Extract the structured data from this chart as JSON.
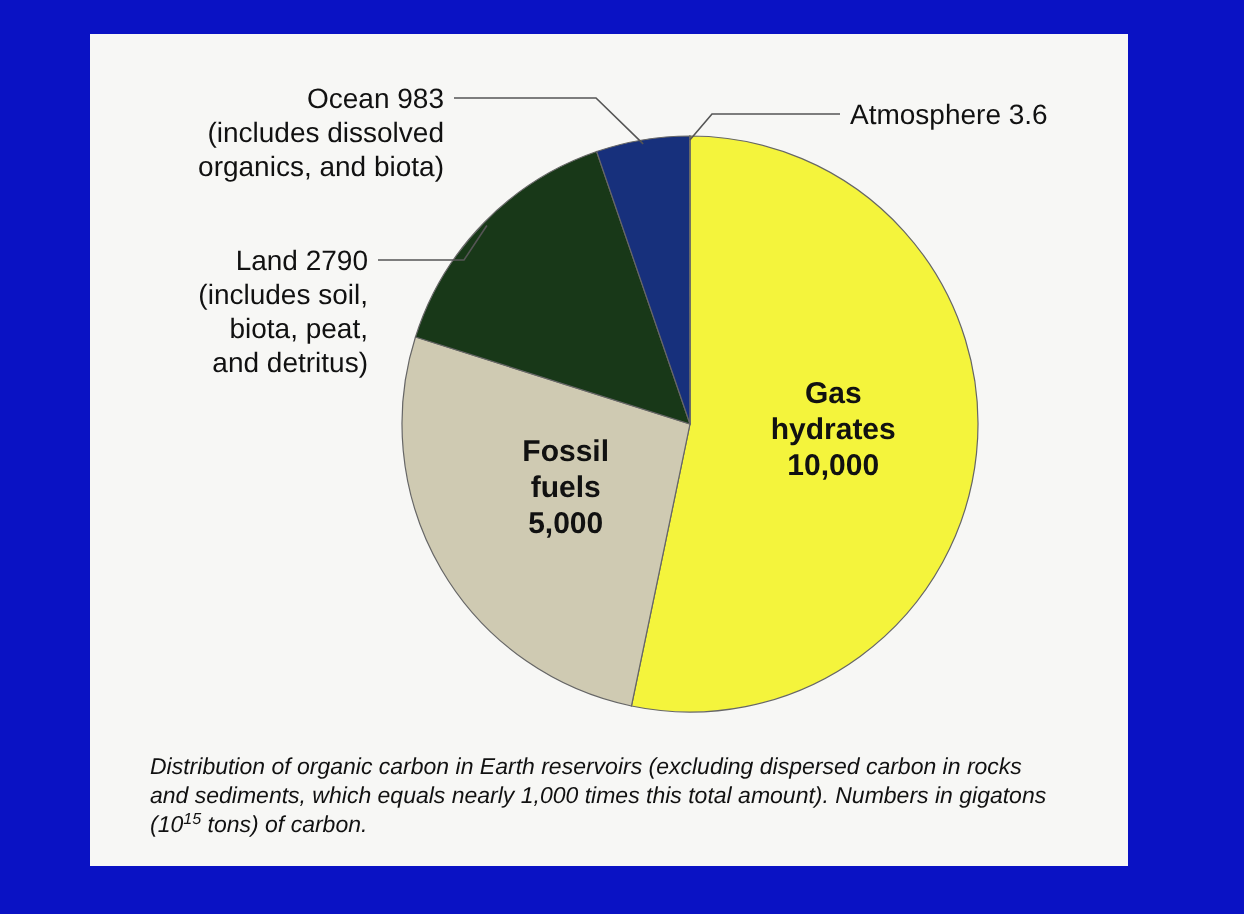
{
  "chart_data": {
    "type": "pie",
    "categories": [
      "Gas hydrates",
      "Fossil fuels",
      "Land",
      "Ocean",
      "Atmosphere"
    ],
    "values": [
      10000,
      5000,
      2790,
      983,
      3.6
    ],
    "value_labels": [
      "10,000",
      "5,000",
      "2790",
      "983",
      "3.6"
    ],
    "colors": [
      "#f4f43c",
      "#cfcab2",
      "#183818",
      "#17307c",
      "#8d9ab8"
    ],
    "annotations": [
      {
        "text": "(includes soil, biota, peat, and detritus)",
        "x": "Land"
      },
      {
        "text": "(includes dissolved organics, and biota)",
        "x": "Ocean"
      },
      "Distribution of organic carbon in Earth reservoirs (excluding dispersed carbon in rocks and sediments, which equals nearly 1,000 times this total amount).  Numbers in gigatons (10$^{15}$ tons) of carbon."
    ]
  }
}
